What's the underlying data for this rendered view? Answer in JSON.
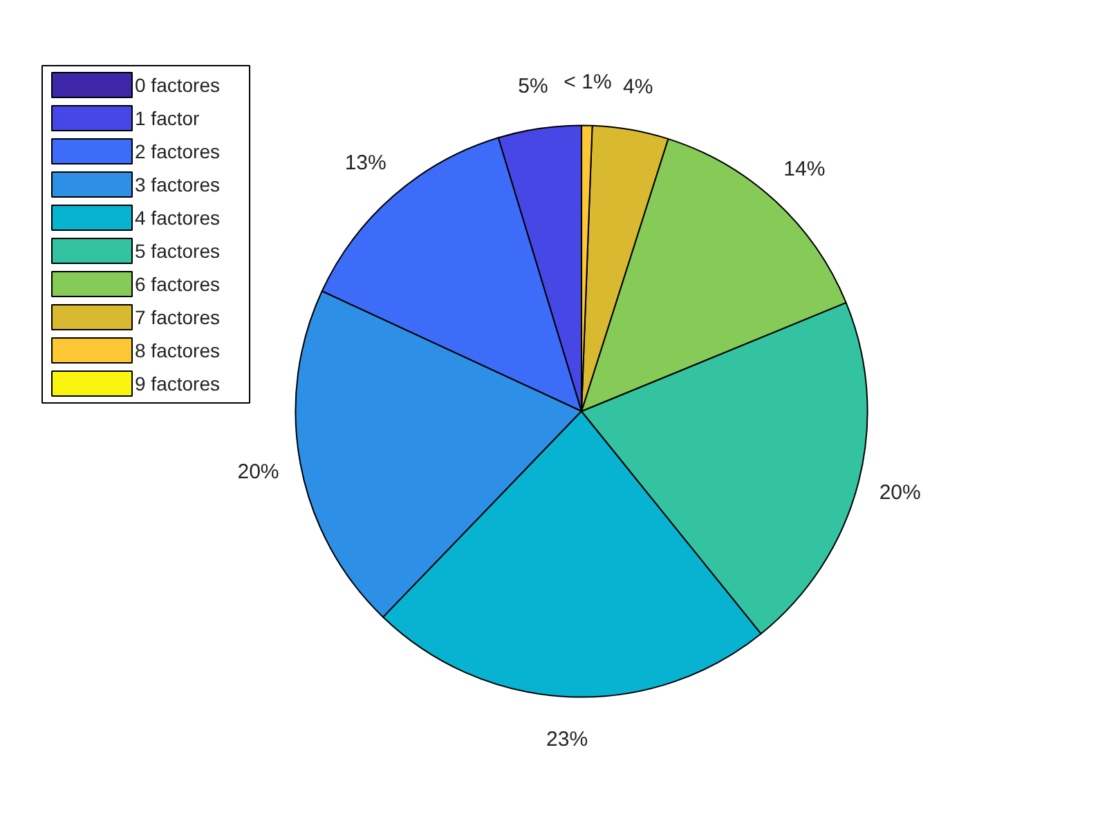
{
  "chart_data": {
    "type": "pie",
    "categories": [
      "0 factores",
      "1 factor",
      "2 factores",
      "3 factores",
      "4 factores",
      "5 factores",
      "6 factores",
      "7 factores",
      "8 factores",
      "9 factores"
    ],
    "values": [
      0,
      4.7,
      13.4,
      19.7,
      23,
      20.4,
      13.9,
      4.3,
      0.6,
      0
    ],
    "value_labels": [
      null,
      "5%",
      "13%",
      "20%",
      "23%",
      "20%",
      "14%",
      "4%",
      "< 1%",
      null
    ],
    "colors": [
      "#3e26a8",
      "#4747e6",
      "#3d6cf8",
      "#2e8fe6",
      "#08b3d2",
      "#33c3a0",
      "#86ca58",
      "#d9b930",
      "#fcc634",
      "#f9f50f"
    ],
    "legend": "top left"
  }
}
